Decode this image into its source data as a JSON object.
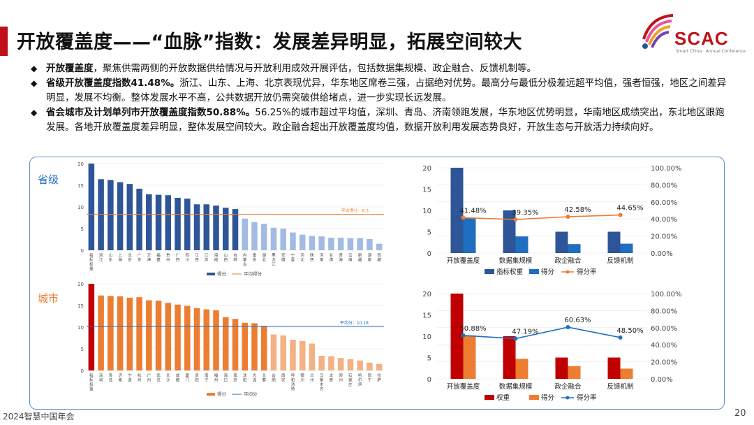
{
  "title": "开放覆盖度——“血脉”指数：发展差异明显，拓展空间较大",
  "logo": {
    "name": "SCAC",
    "subtitle": "Smart China · Annual Conference"
  },
  "bullets": [
    {
      "bold": "开放覆盖度",
      "text": "，聚焦供需两侧的开放数据供给情况与开放利用成效开展评估，包括数据集规模、政企融合、反馈机制等。"
    },
    {
      "bold": "省级开放覆盖度指数41.48%。",
      "text": "浙江、山东、上海、北京表现优异，华东地区席卷三强，占据绝对优势。最高分与最低分极差远超平均值，强者恒强，地区之间差异明显，发展不均衡。整体发展水平不高，公共数据开放仍需突破供给堵点，进一步实现长远发展。"
    },
    {
      "bold": "省会城市及计划单列市开放覆盖度指数50.88%。",
      "text": "56.25%的城市超过平均值，深圳、青岛、济南领跑发展，华东地区优势明显，华南地区成绩突出，东北地区跟跑发展。各地开放覆盖度差异明显，整体发展空间较大。政企融合超出开放覆盖度均值，数据开放利用发展态势良好，开放生态与开放活力持续向好。"
    }
  ],
  "labels": {
    "province": "省级",
    "city": "城市"
  },
  "footer": "2024智慧中国年会",
  "page_number": "20",
  "colors": {
    "accent_red": "#c0111a",
    "blue_dark": "#2e5597",
    "blue": "#1f6fc0",
    "blue_light": "#a3bbe3",
    "orange": "#ed7d31",
    "orange_light": "#f4b183",
    "crimson": "#c00000",
    "panel_border": "#5a8fd6"
  },
  "chart_data": [
    {
      "type": "bar",
      "title": "省级",
      "categories": [
        "指标权重",
        "浙江",
        "山东",
        "上海",
        "北京",
        "广东",
        "天津",
        "福建",
        "贵州",
        "广西",
        "四川",
        "江西",
        "江苏",
        "海南",
        "山西",
        "吉林",
        "内蒙古",
        "重庆",
        "湖北",
        "黑龙江",
        "安徽",
        "宁夏",
        "河北",
        "陕西",
        "河南",
        "甘肃",
        "青海",
        "云南",
        "新疆",
        "湖南",
        "西藏"
      ],
      "series": [
        {
          "name": "得分",
          "values": [
            20,
            16.4,
            16.2,
            15.7,
            15.3,
            14.2,
            12.9,
            12.8,
            12.7,
            12.1,
            11.9,
            10.6,
            10.6,
            10.3,
            9.8,
            9.5,
            7.3,
            6.5,
            6.1,
            5.2,
            5.0,
            4.1,
            3.6,
            3.3,
            3.2,
            2.9,
            2.9,
            2.8,
            2.8,
            2.6,
            1.5
          ]
        }
      ],
      "average": {
        "name": "平均得分",
        "value": 8.3,
        "label": "平均得分：8.3"
      },
      "ylim": [
        0,
        20
      ],
      "yticks": [
        0,
        5,
        10,
        15,
        20
      ],
      "legend": [
        "得分",
        "平均得分"
      ]
    },
    {
      "type": "bar",
      "title": "城市",
      "categories": [
        "指标权重",
        "深圳",
        "青岛",
        "济南",
        "宁波",
        "杭州",
        "广州",
        "武汉",
        "长沙",
        "成都",
        "厦门",
        "贵阳",
        "南宁",
        "福州",
        "海口",
        "南京",
        "沈阳",
        "大连",
        "长春",
        "合肥",
        "西安",
        "呼和浩特",
        "银川",
        "兰州",
        "乌鲁木齐",
        "太原",
        "郑州",
        "石家庄",
        "哈尔滨",
        "西宁",
        "拉萨"
      ],
      "series": [
        {
          "name": "得分",
          "values": [
            20,
            17.3,
            17.2,
            17.1,
            16.8,
            16.9,
            16.2,
            16.1,
            15.6,
            15.2,
            14.9,
            14.4,
            14.1,
            13.9,
            12.3,
            11.9,
            11.0,
            10.9,
            10.3,
            8.3,
            8.1,
            7.1,
            6.8,
            6.2,
            3.4,
            3.3,
            2.9,
            2.6,
            2.3,
            1.8,
            1.5
          ]
        }
      ],
      "average": {
        "name": "平均分",
        "value": 10.18,
        "label": "平均分：10.18"
      },
      "ylim": [
        0,
        20
      ],
      "yticks": [
        0,
        5,
        10,
        15,
        20
      ],
      "legend": [
        "得分",
        "平均分"
      ]
    },
    {
      "type": "bar",
      "title": "",
      "categories": [
        "开放覆盖度",
        "数据集规模",
        "政企融合",
        "反馈机制"
      ],
      "series": [
        {
          "name": "指标权重",
          "values": [
            20,
            10,
            5,
            5
          ]
        },
        {
          "name": "得分",
          "values": [
            8.3,
            3.9,
            2.1,
            2.2
          ]
        },
        {
          "name": "得分率",
          "values": [
            41.48,
            39.35,
            42.58,
            44.65
          ],
          "labels": [
            "41.48%",
            "39.35%",
            "42.58%",
            "44.65%"
          ]
        }
      ],
      "ylim": [
        0,
        20
      ],
      "yticks": [
        0,
        5,
        10,
        15,
        20
      ],
      "y2lim": [
        0,
        100
      ],
      "y2ticks": [
        "0.00%",
        "20.00%",
        "40.00%",
        "60.00%",
        "80.00%",
        "100.00%"
      ]
    },
    {
      "type": "bar",
      "title": "",
      "categories": [
        "开放覆盖度",
        "数据集规模",
        "政企融合",
        "反馈机制"
      ],
      "series": [
        {
          "name": "权重",
          "values": [
            20,
            10,
            5,
            5
          ]
        },
        {
          "name": "得分",
          "values": [
            10.2,
            4.7,
            3.0,
            2.4
          ]
        },
        {
          "name": "得分率",
          "values": [
            50.88,
            47.19,
            60.63,
            48.5
          ],
          "labels": [
            "50.88%",
            "47.19%",
            "60.63%",
            "48.50%"
          ]
        }
      ],
      "ylim": [
        0,
        20
      ],
      "yticks": [
        0,
        5,
        10,
        15,
        20
      ],
      "y2lim": [
        0,
        100
      ],
      "y2ticks": [
        "0.00%",
        "20.00%",
        "40.00%",
        "60.00%",
        "80.00%",
        "100.00%"
      ]
    }
  ]
}
